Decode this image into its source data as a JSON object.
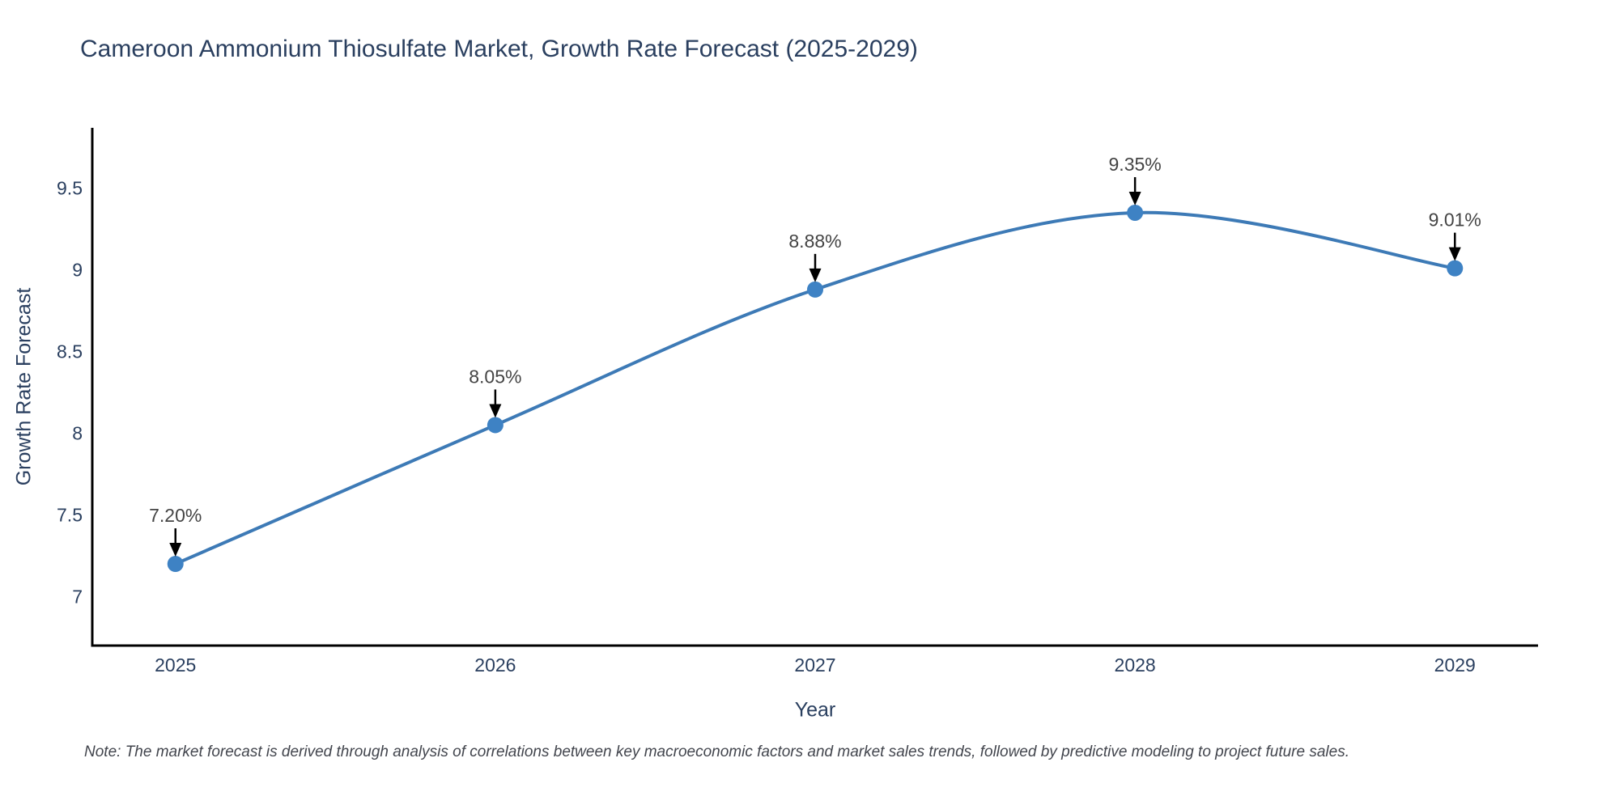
{
  "chart_data": {
    "type": "line",
    "title": "Cameroon Ammonium Thiosulfate Market, Growth Rate Forecast (2025-2029)",
    "xlabel": "Year",
    "ylabel": "Growth Rate Forecast",
    "note": "Note: The market forecast is derived through analysis of correlations between key macroeconomic factors and market sales trends, followed by predictive modeling to project future sales.",
    "x": [
      2025,
      2026,
      2027,
      2028,
      2029
    ],
    "x_tick_labels": [
      "2025",
      "2026",
      "2027",
      "2028",
      "2029"
    ],
    "values": [
      7.2,
      8.05,
      8.88,
      9.35,
      9.01
    ],
    "point_labels": [
      "7.20%",
      "8.05%",
      "8.88%",
      "9.35%",
      "9.01%"
    ],
    "y_ticks": [
      7,
      7.5,
      8,
      8.5,
      9,
      9.5
    ],
    "xlim": [
      2024.74,
      2029.26
    ],
    "ylim": [
      6.7,
      9.87
    ],
    "line_shape": "spline",
    "grid": false,
    "legend": "none",
    "colors": {
      "line": "#3d7ab6",
      "marker": "#3e82c4",
      "axis": "#000000",
      "tick_text": "#2a3f5f",
      "annotation_text": "#444444",
      "arrow": "#000000"
    }
  }
}
